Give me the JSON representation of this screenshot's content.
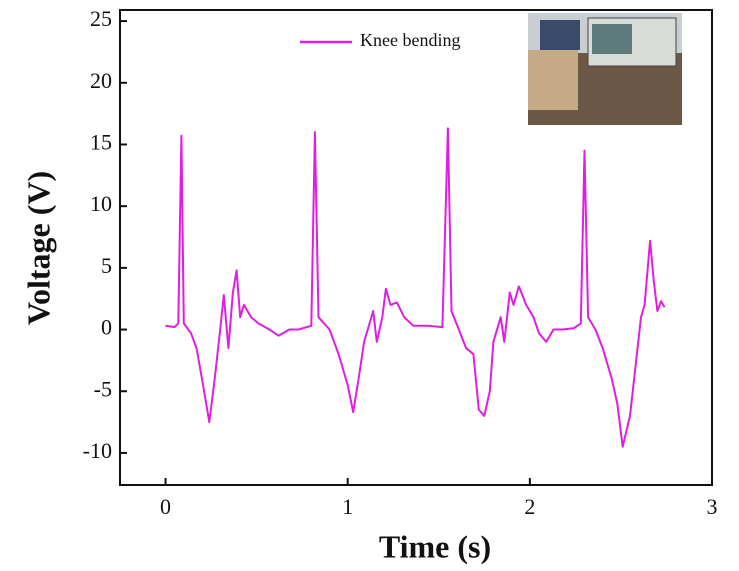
{
  "chart_data": {
    "type": "line",
    "x_label": "Time (s)",
    "y_label": "Voltage (V)",
    "xlim": [
      -0.25,
      3
    ],
    "ylim": [
      -12.6,
      25.9
    ],
    "xticks": [
      0,
      1,
      2,
      3
    ],
    "yticks": [
      -10,
      -5,
      0,
      5,
      10,
      15,
      20,
      25
    ],
    "legend_position": "upper center",
    "series": [
      {
        "name": "Knee bending",
        "color": "#e01ee0",
        "x": [
          0,
          0.05,
          0.07,
          0.087,
          0.1,
          0.14,
          0.17,
          0.2,
          0.24,
          0.27,
          0.3,
          0.32,
          0.345,
          0.37,
          0.39,
          0.41,
          0.43,
          0.47,
          0.51,
          0.57,
          0.62,
          0.68,
          0.73,
          0.8,
          0.82,
          0.84,
          0.9,
          0.95,
          1.0,
          1.03,
          1.06,
          1.09,
          1.14,
          1.16,
          1.19,
          1.21,
          1.235,
          1.27,
          1.31,
          1.36,
          1.44,
          1.52,
          1.55,
          1.57,
          1.61,
          1.65,
          1.69,
          1.72,
          1.75,
          1.78,
          1.8,
          1.84,
          1.86,
          1.89,
          1.91,
          1.94,
          1.98,
          2.02,
          2.05,
          2.09,
          2.13,
          2.18,
          2.24,
          2.28,
          2.3,
          2.32,
          2.36,
          2.4,
          2.45,
          2.48,
          2.51,
          2.55,
          2.58,
          2.61,
          2.63,
          2.66,
          2.68,
          2.7,
          2.72,
          2.74
        ],
        "values": [
          0.3,
          0.2,
          0.5,
          15.7,
          0.5,
          -0.3,
          -1.5,
          -4,
          -7.5,
          -4,
          0,
          2.8,
          -1.5,
          3,
          4.8,
          1,
          2,
          1,
          0.5,
          0,
          -0.5,
          0,
          0,
          0.3,
          16,
          1,
          0,
          -2,
          -4.5,
          -6.7,
          -4,
          -1,
          1.5,
          -1,
          1,
          3.3,
          2,
          2.2,
          1,
          0.3,
          0.3,
          0.2,
          16.3,
          1.5,
          0,
          -1.5,
          -2,
          -6.5,
          -7,
          -5,
          -1,
          1,
          -1,
          3,
          2,
          3.5,
          2,
          1,
          -0.3,
          -1,
          0,
          0,
          0.1,
          0.5,
          14.5,
          1,
          0,
          -1.5,
          -4,
          -6,
          -9.5,
          -7,
          -3,
          1,
          2,
          7.2,
          4,
          1.5,
          2.3,
          1.8
        ]
      }
    ]
  }
}
